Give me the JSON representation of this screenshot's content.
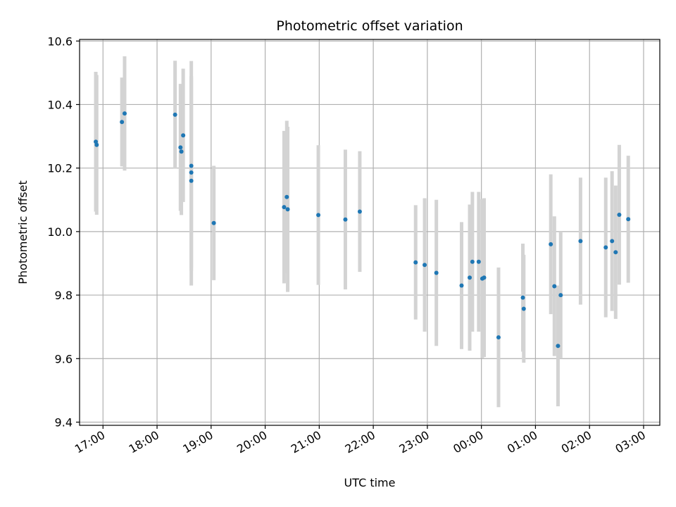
{
  "chart_data": {
    "type": "scatter",
    "title": "Photometric offset variation",
    "xlabel": "UTC time",
    "ylabel": "Photometric offset",
    "x_unit": "UTC time (HH:MM, day 1 then day 2 after midnight)",
    "xlim": [
      "16:34",
      "03:18"
    ],
    "ylim": [
      9.39,
      10.605
    ],
    "x_ticks": [
      "17:00",
      "18:00",
      "19:00",
      "20:00",
      "21:00",
      "22:00",
      "23:00",
      "00:00",
      "01:00",
      "02:00",
      "03:00"
    ],
    "y_ticks": [
      "9.4",
      "9.6",
      "9.8",
      "10.0",
      "10.2",
      "10.4",
      "10.6"
    ],
    "grid": true,
    "colors": {
      "points": "#1f77b4",
      "errorbars": "#d3d3d3",
      "grid": "#b0b0b0"
    },
    "points": [
      {
        "time": "16:52",
        "y": 10.283,
        "err": 0.22
      },
      {
        "time": "16:53",
        "y": 10.273,
        "err": 0.22
      },
      {
        "time": "17:21",
        "y": 10.345,
        "err": 0.14
      },
      {
        "time": "17:24",
        "y": 10.372,
        "err": 0.18
      },
      {
        "time": "18:20",
        "y": 10.368,
        "err": 0.17
      },
      {
        "time": "18:26",
        "y": 10.265,
        "err": 0.2
      },
      {
        "time": "18:27",
        "y": 10.252,
        "err": 0.2
      },
      {
        "time": "18:29",
        "y": 10.303,
        "err": 0.21
      },
      {
        "time": "18:38",
        "y": 10.207,
        "err": 0.33
      },
      {
        "time": "18:38",
        "y": 10.186,
        "err": 0.3
      },
      {
        "time": "18:38",
        "y": 10.16,
        "err": 0.33
      },
      {
        "time": "19:03",
        "y": 10.027,
        "err": 0.18
      },
      {
        "time": "20:21",
        "y": 10.077,
        "err": 0.24
      },
      {
        "time": "20:24",
        "y": 10.109,
        "err": 0.24
      },
      {
        "time": "20:25",
        "y": 10.07,
        "err": 0.26
      },
      {
        "time": "20:59",
        "y": 10.052,
        "err": 0.22
      },
      {
        "time": "21:29",
        "y": 10.038,
        "err": 0.22
      },
      {
        "time": "21:45",
        "y": 10.063,
        "err": 0.19
      },
      {
        "time": "22:47",
        "y": 9.903,
        "err": 0.18
      },
      {
        "time": "22:57",
        "y": 9.895,
        "err": 0.21
      },
      {
        "time": "23:10",
        "y": 9.87,
        "err": 0.23
      },
      {
        "time": "23:38",
        "y": 9.83,
        "err": 0.2
      },
      {
        "time": "23:47",
        "y": 9.855,
        "err": 0.23
      },
      {
        "time": "23:50",
        "y": 9.905,
        "err": 0.22
      },
      {
        "time": "23:57",
        "y": 9.905,
        "err": 0.22
      },
      {
        "time": "00:01",
        "y": 9.852,
        "err": 0.25
      },
      {
        "time": "00:03",
        "y": 9.855,
        "err": 0.25
      },
      {
        "time": "00:19",
        "y": 9.667,
        "err": 0.22
      },
      {
        "time": "00:46",
        "y": 9.792,
        "err": 0.17
      },
      {
        "time": "00:47",
        "y": 9.757,
        "err": 0.17
      },
      {
        "time": "01:17",
        "y": 9.96,
        "err": 0.22
      },
      {
        "time": "01:21",
        "y": 9.828,
        "err": 0.22
      },
      {
        "time": "01:25",
        "y": 9.64,
        "err": 0.19
      },
      {
        "time": "01:28",
        "y": 9.8,
        "err": 0.2
      },
      {
        "time": "01:50",
        "y": 9.97,
        "err": 0.2
      },
      {
        "time": "02:18",
        "y": 9.95,
        "err": 0.22
      },
      {
        "time": "02:25",
        "y": 9.97,
        "err": 0.22
      },
      {
        "time": "02:29",
        "y": 9.935,
        "err": 0.21
      },
      {
        "time": "02:33",
        "y": 10.053,
        "err": 0.22
      },
      {
        "time": "02:43",
        "y": 10.039,
        "err": 0.2
      }
    ]
  }
}
